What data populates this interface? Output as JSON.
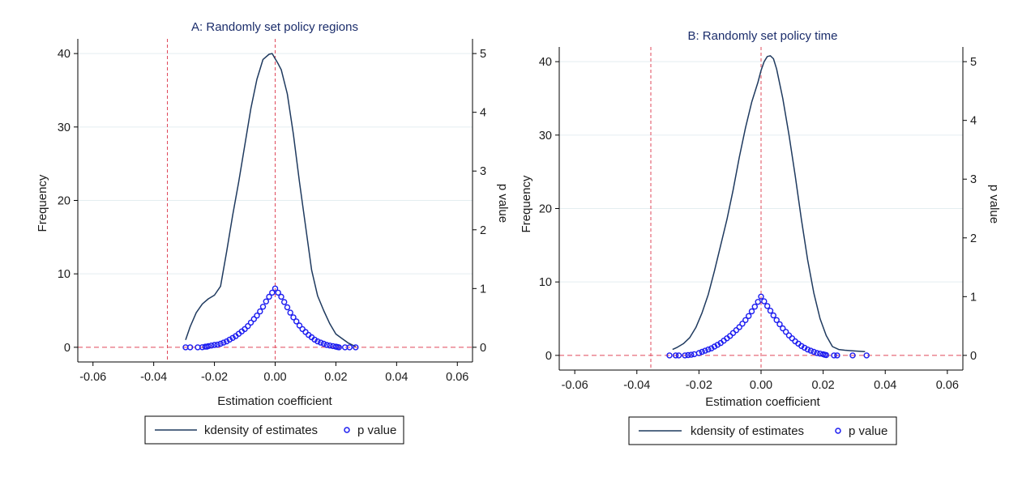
{
  "figure": {
    "colors": {
      "density_line": "#1f3a5f",
      "p_value_marker": "#1c1cf0",
      "reference_line": "#e0485a",
      "gridline": "#e4eef0",
      "axis": "#000000"
    }
  },
  "chart_data": [
    {
      "type": "line",
      "title": "A: Randomly set policy regions",
      "xlabel": "Estimation coefficient",
      "ylabel": "Frequency",
      "y2label": "p value",
      "xlim": [
        -0.065,
        0.065
      ],
      "ylim": [
        -2,
        42
      ],
      "y2lim": [
        -0.25,
        5.25
      ],
      "xticks": [
        -0.06,
        -0.04,
        -0.02,
        0.0,
        0.02,
        0.04,
        0.06
      ],
      "xtick_labels": [
        "-0.06",
        "-0.04",
        "-0.02",
        "0.00",
        "0.02",
        "0.04",
        "0.06"
      ],
      "yticks": [
        0,
        10,
        20,
        30,
        40
      ],
      "ytick_labels": [
        "0",
        "10",
        "20",
        "30",
        "40"
      ],
      "y2ticks": [
        0,
        1,
        2,
        3,
        4,
        5
      ],
      "y2tick_labels": [
        "0",
        "1",
        "2",
        "3",
        "4",
        "5"
      ],
      "grid": true,
      "reference_lines": {
        "vertical": [
          -0.0355,
          0.0
        ],
        "horizontal": [
          0.0
        ]
      },
      "series": [
        {
          "name": "kdensity of estimates",
          "type": "line",
          "axis": "left",
          "x": [
            -0.0295,
            -0.028,
            -0.026,
            -0.024,
            -0.022,
            -0.02,
            -0.018,
            -0.016,
            -0.014,
            -0.012,
            -0.01,
            -0.008,
            -0.006,
            -0.004,
            -0.002,
            -0.001,
            0.0,
            0.001,
            0.002,
            0.004,
            0.006,
            0.008,
            0.01,
            0.012,
            0.014,
            0.016,
            0.018,
            0.02,
            0.022,
            0.024,
            0.0265
          ],
          "values": [
            1.0,
            2.8,
            4.7,
            5.9,
            6.6,
            7.1,
            8.3,
            13.0,
            18.0,
            22.5,
            27.5,
            32.5,
            36.5,
            39.2,
            39.9,
            40.0,
            39.3,
            38.6,
            37.8,
            34.5,
            29.0,
            22.5,
            16.5,
            10.5,
            7.0,
            5.0,
            3.2,
            1.8,
            1.2,
            0.6,
            0.1
          ]
        },
        {
          "name": "p value",
          "type": "scatter",
          "axis": "right",
          "x": [
            -0.0295,
            -0.028,
            -0.0255,
            -0.024,
            -0.023,
            -0.0225,
            -0.022,
            -0.021,
            -0.02,
            -0.019,
            -0.018,
            -0.017,
            -0.016,
            -0.015,
            -0.014,
            -0.013,
            -0.012,
            -0.011,
            -0.01,
            -0.009,
            -0.008,
            -0.007,
            -0.006,
            -0.005,
            -0.004,
            -0.003,
            -0.002,
            -0.001,
            0.0,
            0.001,
            0.002,
            0.003,
            0.004,
            0.005,
            0.006,
            0.007,
            0.008,
            0.009,
            0.01,
            0.011,
            0.012,
            0.013,
            0.014,
            0.015,
            0.016,
            0.017,
            0.018,
            0.019,
            0.02,
            0.0205,
            0.021,
            0.023,
            0.0245,
            0.0265
          ],
          "values": [
            0.0,
            0.0,
            0.0,
            0.001,
            0.01,
            0.01,
            0.02,
            0.03,
            0.04,
            0.045,
            0.06,
            0.08,
            0.1,
            0.13,
            0.16,
            0.19,
            0.23,
            0.27,
            0.31,
            0.36,
            0.42,
            0.48,
            0.54,
            0.61,
            0.69,
            0.78,
            0.86,
            0.93,
            1.0,
            0.93,
            0.86,
            0.77,
            0.68,
            0.59,
            0.51,
            0.44,
            0.37,
            0.31,
            0.26,
            0.21,
            0.17,
            0.13,
            0.1,
            0.08,
            0.06,
            0.04,
            0.03,
            0.02,
            0.01,
            0.005,
            0.0,
            0.0,
            0.0,
            0.0
          ]
        }
      ],
      "legend": {
        "position": "bottom",
        "entries": [
          "kdensity of estimates",
          "p value"
        ]
      }
    },
    {
      "type": "line",
      "title": "B: Randomly set policy time",
      "xlabel": "Estimation coefficient",
      "ylabel": "Frequency",
      "y2label": "p value",
      "xlim": [
        -0.065,
        0.065
      ],
      "ylim": [
        -2,
        42
      ],
      "y2lim": [
        -0.25,
        5.25
      ],
      "xticks": [
        -0.06,
        -0.04,
        -0.02,
        0.0,
        0.02,
        0.04,
        0.06
      ],
      "xtick_labels": [
        "-0.06",
        "-0.04",
        "-0.02",
        "0.00",
        "0.02",
        "0.04",
        "0.06"
      ],
      "yticks": [
        0,
        10,
        20,
        30,
        40
      ],
      "ytick_labels": [
        "0",
        "10",
        "20",
        "30",
        "40"
      ],
      "y2ticks": [
        0,
        1,
        2,
        3,
        4,
        5
      ],
      "y2tick_labels": [
        "0",
        "1",
        "2",
        "3",
        "4",
        "5"
      ],
      "grid": true,
      "reference_lines": {
        "vertical": [
          -0.0355,
          0.0
        ],
        "horizontal": [
          0.0
        ]
      },
      "series": [
        {
          "name": "kdensity of estimates",
          "type": "line",
          "axis": "left",
          "x": [
            -0.0285,
            -0.027,
            -0.025,
            -0.023,
            -0.021,
            -0.019,
            -0.017,
            -0.015,
            -0.013,
            -0.011,
            -0.009,
            -0.007,
            -0.005,
            -0.003,
            -0.001,
            0.0,
            0.001,
            0.002,
            0.003,
            0.004,
            0.005,
            0.007,
            0.009,
            0.011,
            0.013,
            0.015,
            0.017,
            0.019,
            0.021,
            0.023,
            0.025,
            0.027,
            0.03,
            0.0335
          ],
          "values": [
            0.8,
            1.1,
            1.6,
            2.4,
            3.8,
            5.8,
            8.3,
            11.5,
            15.0,
            18.5,
            22.5,
            27.0,
            31.0,
            34.5,
            37.2,
            38.8,
            40.0,
            40.7,
            40.8,
            40.4,
            39.0,
            35.0,
            30.0,
            24.5,
            18.5,
            13.0,
            8.5,
            5.0,
            2.7,
            1.2,
            0.8,
            0.7,
            0.6,
            0.5
          ]
        },
        {
          "name": "p value",
          "type": "scatter",
          "axis": "right",
          "x": [
            -0.0295,
            -0.0275,
            -0.0265,
            -0.0245,
            -0.0235,
            -0.0225,
            -0.0215,
            -0.02,
            -0.019,
            -0.018,
            -0.017,
            -0.016,
            -0.015,
            -0.014,
            -0.013,
            -0.012,
            -0.011,
            -0.01,
            -0.009,
            -0.008,
            -0.007,
            -0.006,
            -0.005,
            -0.004,
            -0.003,
            -0.002,
            -0.001,
            0.0,
            0.001,
            0.002,
            0.003,
            0.004,
            0.005,
            0.006,
            0.007,
            0.008,
            0.009,
            0.01,
            0.011,
            0.012,
            0.013,
            0.014,
            0.015,
            0.016,
            0.017,
            0.018,
            0.019,
            0.02,
            0.0205,
            0.021,
            0.0235,
            0.0245,
            0.0295,
            0.034
          ],
          "values": [
            0.0,
            0.0,
            0.0,
            0.0,
            0.005,
            0.01,
            0.02,
            0.04,
            0.06,
            0.08,
            0.1,
            0.12,
            0.15,
            0.18,
            0.21,
            0.25,
            0.29,
            0.33,
            0.38,
            0.43,
            0.48,
            0.54,
            0.6,
            0.67,
            0.75,
            0.83,
            0.91,
            1.0,
            0.92,
            0.84,
            0.76,
            0.68,
            0.6,
            0.53,
            0.46,
            0.4,
            0.34,
            0.29,
            0.24,
            0.2,
            0.16,
            0.13,
            0.1,
            0.08,
            0.06,
            0.04,
            0.03,
            0.02,
            0.01,
            0.005,
            0.0,
            0.0,
            0.0,
            0.0
          ]
        }
      ],
      "legend": {
        "position": "bottom",
        "entries": [
          "kdensity of estimates",
          "p value"
        ]
      }
    }
  ]
}
